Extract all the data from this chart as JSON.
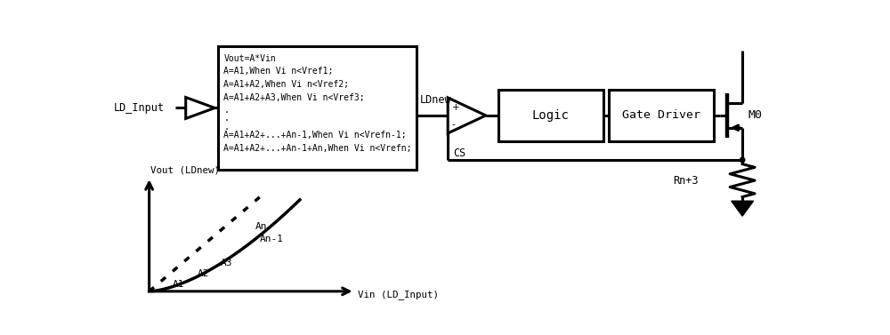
{
  "bg_color": "#ffffff",
  "text_color": "#000000",
  "box_text_lines": [
    "Vout=A*Vin",
    "A=A1,When Vi n<Vref1;",
    "A=A1+A2,When Vi n<Vref2;",
    "A=A1+A2+A3,When Vi n<Vref3;",
    ".",
    ".",
    ".",
    "A=A1+A2+...+An-1,When Vi n<Vrefn-1;",
    "A=A1+A2+...+An-1+An,When Vi n<Vrefn;"
  ],
  "ld_input_label": "LD_Input",
  "ldnew_label": "LDnew",
  "cs_label": "CS",
  "logic_label": "Logic",
  "gate_driver_label": "Gate Driver",
  "m0_label": "M0",
  "rn3_label": "Rn+3",
  "vout_label": "Vout (LDnew)",
  "vin_label": "Vin (LD_Input)",
  "curve_labels": [
    "A1",
    "A2",
    "A3",
    "An-1",
    "An"
  ]
}
